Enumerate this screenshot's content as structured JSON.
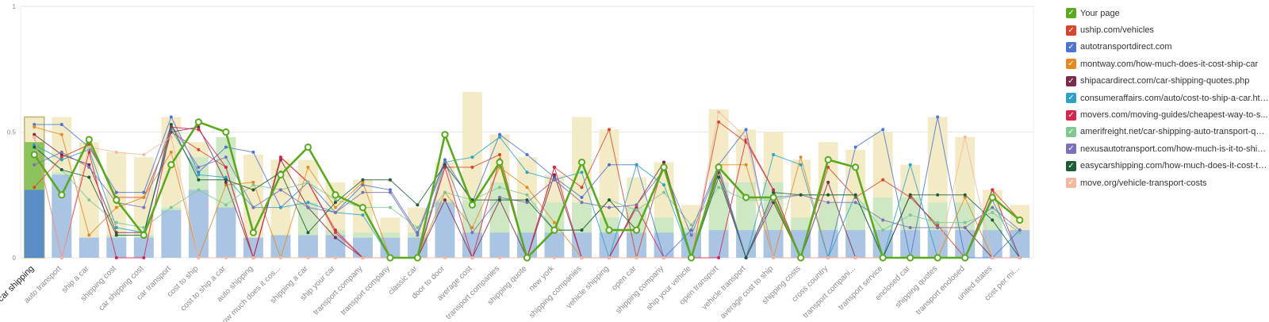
{
  "chart_data": {
    "type": "bar+line",
    "ylim": [
      0,
      1
    ],
    "y_ticks": [
      "0",
      "0.5",
      "1"
    ],
    "grid": true,
    "legend_position": "right",
    "categories": [
      "car shipping",
      "auto transport",
      "ship a car",
      "shipping cost",
      "car shipping cost",
      "car transport",
      "cost to ship",
      "cost to ship a car",
      "auto shipping",
      "how much does it cos...",
      "shipping a car",
      "ship your car",
      "transport company",
      "transport company",
      "classic car",
      "door to door",
      "average cost",
      "transport companies",
      "shipping quote",
      "new york",
      "shipping companies",
      "vehicle shipping",
      "open car",
      "shipping company",
      "ship your vehicle",
      "open transport",
      "vehicle transport",
      "average cost to ship",
      "shipping costs",
      "cross country",
      "transport compani...",
      "transport service",
      "enclosed car",
      "shipping quotes",
      "transport enclosed",
      "united states",
      "cost per mi..."
    ],
    "selected_category": "car shipping",
    "bars": {
      "beige": [
        0.56,
        0.56,
        0.46,
        0.42,
        0.4,
        0.56,
        0.46,
        0.48,
        0.41,
        0.39,
        0.39,
        0.3,
        0.31,
        0.16,
        0.2,
        0.38,
        0.66,
        0.49,
        0.4,
        0.33,
        0.56,
        0.51,
        0.32,
        0.38,
        0.21,
        0.59,
        0.51,
        0.5,
        0.39,
        0.46,
        0.43,
        0.5,
        0.37,
        0.56,
        0.48,
        0.27,
        0.21
      ],
      "green": [
        0.46,
        0.34,
        0.08,
        0.09,
        0.09,
        0.2,
        0.4,
        0.48,
        0.08,
        0.09,
        0.22,
        0.11,
        0.1,
        0.1,
        0.1,
        0.23,
        0.23,
        0.3,
        0.22,
        0.22,
        0.22,
        0.16,
        0.2,
        0.16,
        0.12,
        0.3,
        0.3,
        0.3,
        0.16,
        0.22,
        0.22,
        0.24,
        0.24,
        0.22,
        0.22,
        0.2,
        0.1
      ],
      "blue": [
        0.27,
        0.33,
        0.08,
        0.08,
        0.08,
        0.19,
        0.27,
        0.2,
        0.08,
        0.09,
        0.09,
        0.09,
        0.08,
        0.08,
        0.08,
        0.22,
        0.1,
        0.1,
        0.1,
        0.1,
        0.1,
        0.1,
        0.1,
        0.1,
        0.1,
        0.11,
        0.11,
        0.11,
        0.11,
        0.11,
        0.11,
        0.11,
        0.11,
        0.11,
        0.11,
        0.11,
        0.11
      ]
    },
    "series": [
      {
        "name": "Your page",
        "color": "#5aaa1e",
        "values": [
          0.41,
          0.25,
          0.47,
          0.23,
          0.09,
          0.37,
          0.54,
          0.5,
          0.1,
          0.33,
          0.44,
          0.25,
          0.2,
          0.0,
          0.0,
          0.49,
          0.21,
          0.38,
          0.0,
          0.11,
          0.38,
          0.11,
          0.11,
          0.36,
          0.0,
          0.36,
          0.24,
          0.24,
          0.0,
          0.39,
          0.36,
          0.0,
          0.0,
          0.0,
          0.0,
          0.24,
          0.15
        ]
      },
      {
        "name": "uship.com/vehicles",
        "color": "#d9442c",
        "values": [
          0.28,
          0.4,
          0.45,
          0.24,
          0.24,
          0.5,
          0.43,
          0.36,
          0.0,
          0.4,
          0.3,
          0.1,
          0.0,
          0.0,
          0.0,
          0.36,
          0.36,
          0.41,
          0.0,
          0.36,
          0.28,
          0.51,
          0.0,
          0.38,
          0.0,
          0.54,
          0.46,
          0.27,
          0.0,
          0.36,
          0.24,
          0.31,
          0.24,
          0.13,
          0.0,
          0.27,
          0.15
        ]
      },
      {
        "name": "autotransportdirect.com",
        "color": "#4e73d4",
        "values": [
          0.53,
          0.53,
          0.44,
          0.26,
          0.26,
          0.56,
          0.34,
          0.44,
          0.42,
          0.2,
          0.3,
          0.18,
          0.29,
          0.27,
          0.1,
          0.39,
          0.22,
          0.49,
          0.41,
          0.32,
          0.24,
          0.37,
          0.37,
          0.0,
          0.11,
          0.37,
          0.51,
          0.0,
          0.0,
          0.0,
          0.44,
          0.51,
          0.0,
          0.56,
          0.0,
          0.0,
          0.11
        ]
      },
      {
        "name": "montway.com/how-much-does-it-cost-ship-car",
        "color": "#e58a1f",
        "values": [
          0.52,
          0.49,
          0.09,
          0.2,
          0.24,
          0.42,
          0.0,
          0.29,
          0.3,
          0.0,
          0.36,
          0.2,
          0.3,
          0.0,
          0.0,
          0.26,
          0.12,
          0.36,
          0.28,
          0.14,
          0.0,
          0.0,
          0.0,
          0.0,
          0.0,
          0.37,
          0.37,
          0.0,
          0.4,
          0.0,
          0.0,
          0.0,
          0.0,
          0.0,
          0.24,
          0.0,
          0.0
        ]
      },
      {
        "name": "shipacardirect.com/car-shipping-quotes.php",
        "color": "#7a2a4a",
        "values": [
          0.49,
          0.41,
          0.37,
          0.1,
          0.1,
          0.5,
          0.52,
          0.3,
          0.0,
          0.39,
          0.2,
          0.08,
          0.0,
          0.0,
          0.0,
          0.23,
          0.0,
          0.23,
          0.0,
          0.33,
          0.0,
          0.0,
          0.21,
          0.38,
          0.0,
          0.34,
          0.0,
          0.22,
          0.0,
          0.3,
          0.0,
          0.0,
          0.25,
          0.12,
          0.12,
          0.0,
          0.0
        ]
      },
      {
        "name": "consumeraffairs.com/auto/cost-to-ship-a-car.html",
        "color": "#2ba3c7",
        "values": [
          0.45,
          0.39,
          0.43,
          0.12,
          0.1,
          0.51,
          0.33,
          0.32,
          0.2,
          0.2,
          0.22,
          0.18,
          0.17,
          0.0,
          0.0,
          0.38,
          0.4,
          0.48,
          0.34,
          0.31,
          0.34,
          0.0,
          0.37,
          0.29,
          0.0,
          0.36,
          0.0,
          0.41,
          0.37,
          0.0,
          0.25,
          0.0,
          0.37,
          0.0,
          0.0,
          0.23,
          0.0
        ]
      },
      {
        "name": "movers.com/moving-guides/cheapest-way-to-s...",
        "color": "#d9254e",
        "values": [
          0.48,
          0.0,
          0.42,
          0.0,
          0.0,
          0.52,
          0.51,
          0.36,
          0.0,
          0.4,
          0.3,
          0.11,
          0.0,
          0.0,
          0.0,
          0.36,
          0.0,
          0.39,
          0.0,
          0.36,
          0.0,
          0.0,
          0.2,
          0.0,
          0.0,
          0.0,
          0.47,
          0.27,
          0.0,
          0.0,
          0.0,
          0.0,
          0.0,
          0.0,
          0.0,
          0.27,
          0.0
        ]
      },
      {
        "name": "amerifreight.net/car-shipping-auto-transport-quo...",
        "color": "#7fc88f",
        "values": [
          0.43,
          0.35,
          0.23,
          0.14,
          0.12,
          0.2,
          0.27,
          0.21,
          0.29,
          0.27,
          0.3,
          0.23,
          0.2,
          0.2,
          0.12,
          0.26,
          0.23,
          0.28,
          0.25,
          0.11,
          0.11,
          0.23,
          0.19,
          0.26,
          0.13,
          0.28,
          0.23,
          0.23,
          0.25,
          0.25,
          0.25,
          0.11,
          0.17,
          0.14,
          0.14,
          0.18,
          0.1
        ]
      },
      {
        "name": "nexusautotransport.com/how-much-is-it-to-ship...",
        "color": "#7a71b8",
        "values": [
          0.37,
          0.42,
          0.36,
          0.22,
          0.2,
          0.53,
          0.36,
          0.4,
          0.2,
          0.27,
          0.2,
          0.18,
          0.26,
          0.26,
          0.09,
          0.38,
          0.1,
          0.24,
          0.22,
          0.31,
          0.22,
          0.2,
          0.21,
          0.35,
          0.09,
          0.36,
          0.0,
          0.24,
          0.25,
          0.22,
          0.22,
          0.15,
          0.12,
          0.12,
          0.12,
          0.2,
          0.11
        ]
      },
      {
        "name": "easycarshipping.com/how-much-does-it-cost-to...",
        "color": "#1e5c3a",
        "values": [
          0.44,
          0.35,
          0.32,
          0.09,
          0.09,
          0.53,
          0.31,
          0.31,
          0.27,
          0.34,
          0.1,
          0.22,
          0.31,
          0.31,
          0.21,
          0.37,
          0.23,
          0.23,
          0.23,
          0.11,
          0.11,
          0.23,
          0.11,
          0.37,
          0.0,
          0.32,
          0.0,
          0.26,
          0.25,
          0.25,
          0.25,
          0.0,
          0.25,
          0.25,
          0.25,
          0.15,
          0.0
        ]
      },
      {
        "name": "move.org/vehicle-transport-costs",
        "color": "#f4b8a0",
        "values": [
          0.48,
          0.0,
          0.44,
          0.42,
          0.41,
          0.48,
          0.0,
          0.0,
          0.0,
          0.0,
          0.0,
          0.0,
          0.0,
          0.0,
          0.0,
          0.0,
          0.0,
          0.0,
          0.0,
          0.0,
          0.0,
          0.0,
          0.0,
          0.0,
          0.0,
          0.58,
          0.48,
          0.0,
          0.0,
          0.0,
          0.0,
          0.0,
          0.0,
          0.0,
          0.48,
          0.0,
          0.0
        ]
      }
    ]
  },
  "legend": {
    "items": [
      {
        "label": "Your page",
        "color": "#5aaa1e"
      },
      {
        "label": "uship.com/vehicles",
        "color": "#d9442c"
      },
      {
        "label": "autotransportdirect.com",
        "color": "#4e73d4"
      },
      {
        "label": "montway.com/how-much-does-it-cost-ship-car",
        "color": "#e58a1f"
      },
      {
        "label": "shipacardirect.com/car-shipping-quotes.php",
        "color": "#7a2a4a"
      },
      {
        "label": "consumeraffairs.com/auto/cost-to-ship-a-car.html",
        "color": "#2ba3c7"
      },
      {
        "label": "movers.com/moving-guides/cheapest-way-to-s...",
        "color": "#d9254e"
      },
      {
        "label": "amerifreight.net/car-shipping-auto-transport-quo...",
        "color": "#7fc88f"
      },
      {
        "label": "nexusautotransport.com/how-much-is-it-to-ship...",
        "color": "#7a71b8"
      },
      {
        "label": "easycarshipping.com/how-much-does-it-cost-to...",
        "color": "#1e5c3a"
      },
      {
        "label": "move.org/vehicle-transport-costs",
        "color": "#f4b8a0"
      }
    ],
    "check_glyph": "✓"
  },
  "colors": {
    "bar_beige": "#f2ebc6",
    "bar_green": "#cfe8c4",
    "bar_blue": "#a9c5e3",
    "selected_blue": "#5b8ec7",
    "selected_green": "#8ac45a",
    "grid": "#e6e6e6",
    "axis_text": "#888888"
  }
}
